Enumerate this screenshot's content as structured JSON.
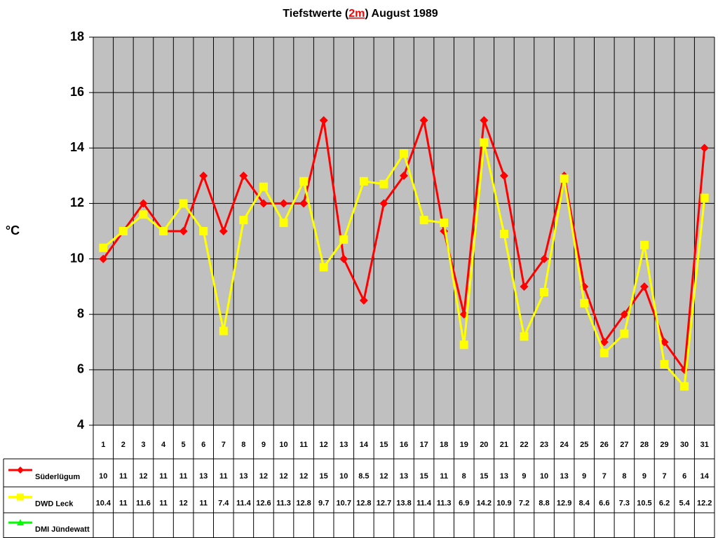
{
  "chart_data": {
    "type": "line",
    "title": "Tiefstwerte (2m) August 1989",
    "title_highlight": "2m",
    "y_label": "°C",
    "categories": [
      "1",
      "2",
      "3",
      "4",
      "5",
      "6",
      "7",
      "8",
      "9",
      "10",
      "11",
      "12",
      "13",
      "14",
      "15",
      "16",
      "17",
      "18",
      "19",
      "20",
      "21",
      "22",
      "23",
      "24",
      "25",
      "26",
      "27",
      "28",
      "29",
      "30",
      "31"
    ],
    "ylim": [
      4,
      18
    ],
    "yticks": [
      4,
      6,
      8,
      10,
      12,
      14,
      16,
      18
    ],
    "grid": true,
    "series": [
      {
        "name": "Süderlügum",
        "color": "#ff0000",
        "marker": "diamond",
        "values": [
          10,
          11,
          12,
          11,
          11,
          13,
          11,
          13,
          12,
          12,
          12,
          15,
          10,
          8.5,
          12,
          13,
          15,
          11,
          8,
          15,
          13,
          9,
          10,
          13,
          9,
          7,
          8,
          9,
          7,
          6,
          14
        ]
      },
      {
        "name": "DWD Leck",
        "color": "#ffff00",
        "marker": "square",
        "values": [
          10.4,
          11,
          11.6,
          11,
          12,
          11,
          7.4,
          11.4,
          12.6,
          11.3,
          12.8,
          9.7,
          10.7,
          12.8,
          12.7,
          13.8,
          11.4,
          11.3,
          6.9,
          14.2,
          10.9,
          7.2,
          8.8,
          12.9,
          8.4,
          6.6,
          7.3,
          10.5,
          6.2,
          5.4,
          12.2
        ]
      },
      {
        "name": "DMI Jündewatt",
        "color": "#00ff00",
        "marker": "triangle",
        "values": [
          null,
          null,
          null,
          null,
          null,
          null,
          null,
          null,
          null,
          null,
          null,
          null,
          null,
          null,
          null,
          null,
          null,
          null,
          null,
          null,
          null,
          null,
          null,
          null,
          null,
          null,
          null,
          null,
          null,
          null,
          null
        ]
      }
    ]
  }
}
